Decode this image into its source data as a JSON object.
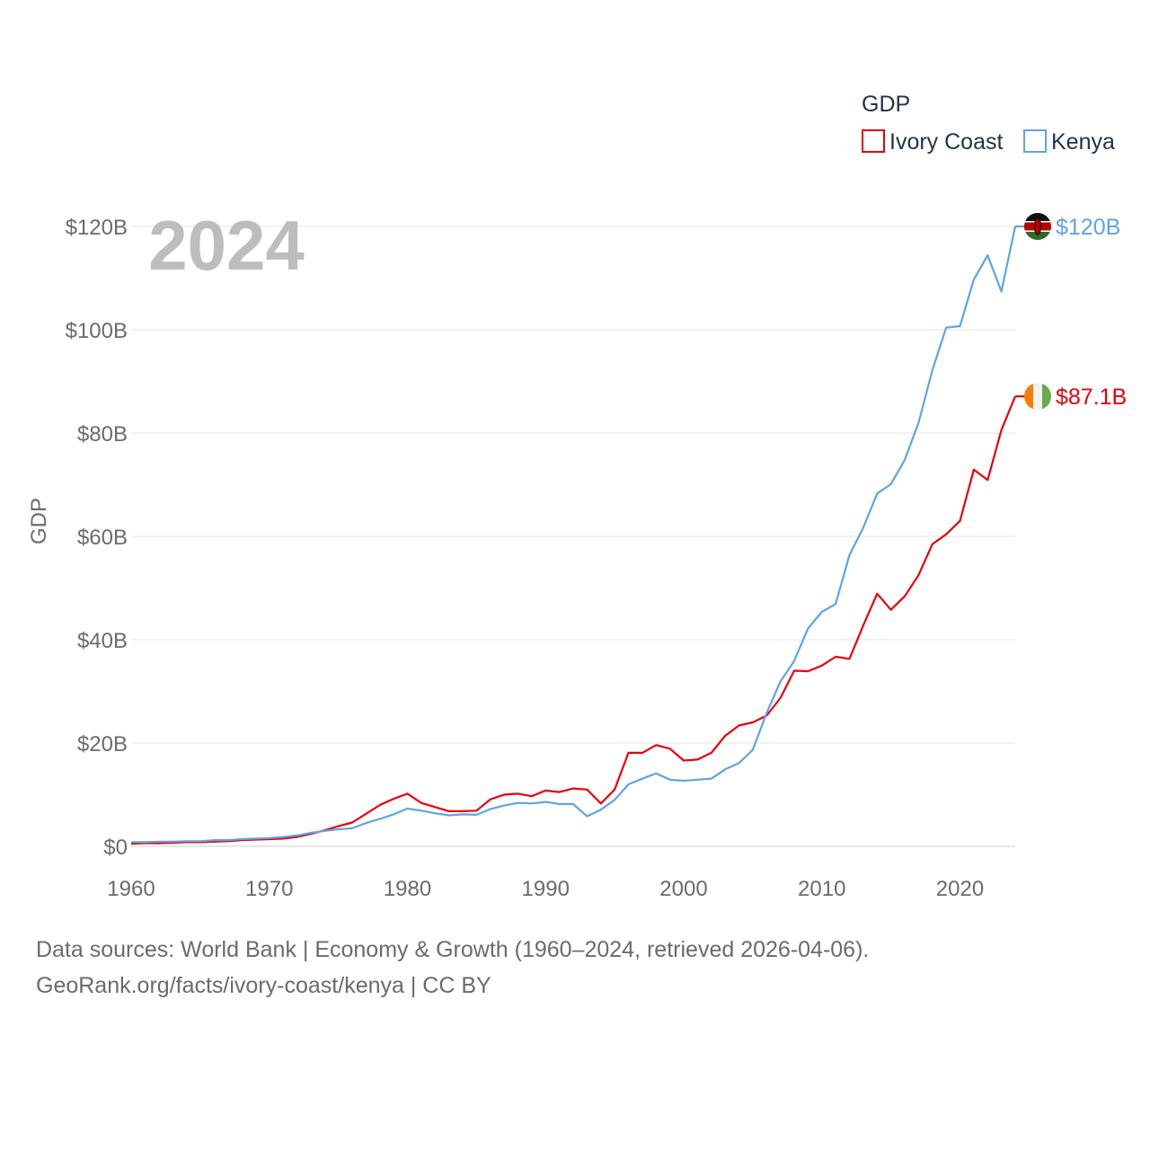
{
  "chart_data": {
    "type": "line",
    "year_label": "2024",
    "ylabel": "GDP",
    "legend_title": "GDP",
    "xlim": [
      1960,
      2024
    ],
    "ylim": [
      0,
      120
    ],
    "x_ticks": [
      1960,
      1970,
      1980,
      1990,
      2000,
      2010,
      2020
    ],
    "y_ticks": [
      {
        "value": 0,
        "label": "$0"
      },
      {
        "value": 20,
        "label": "$20B"
      },
      {
        "value": 40,
        "label": "$40B"
      },
      {
        "value": 60,
        "label": "$60B"
      },
      {
        "value": 80,
        "label": "$80B"
      },
      {
        "value": 100,
        "label": "$100B"
      },
      {
        "value": 120,
        "label": "$120B"
      }
    ],
    "x": [
      1960,
      1961,
      1962,
      1963,
      1964,
      1965,
      1966,
      1967,
      1968,
      1969,
      1970,
      1971,
      1972,
      1973,
      1974,
      1975,
      1976,
      1977,
      1978,
      1979,
      1980,
      1981,
      1982,
      1983,
      1984,
      1985,
      1986,
      1987,
      1988,
      1989,
      1990,
      1991,
      1992,
      1993,
      1994,
      1995,
      1996,
      1997,
      1998,
      1999,
      2000,
      2001,
      2002,
      2003,
      2004,
      2005,
      2006,
      2007,
      2008,
      2009,
      2010,
      2011,
      2012,
      2013,
      2014,
      2015,
      2016,
      2017,
      2018,
      2019,
      2020,
      2021,
      2022,
      2023,
      2024
    ],
    "series": [
      {
        "name": "Ivory Coast",
        "color": "#e8000b",
        "flag": "ivory-coast-flag-icon",
        "end_label": "$87.1B",
        "values": [
          0.5,
          0.6,
          0.6,
          0.7,
          0.8,
          0.8,
          0.9,
          1.0,
          1.2,
          1.3,
          1.4,
          1.5,
          1.8,
          2.4,
          3.1,
          3.9,
          4.6,
          6.3,
          8.0,
          9.2,
          10.2,
          8.4,
          7.6,
          6.8,
          6.8,
          6.9,
          9.1,
          10.0,
          10.2,
          9.7,
          10.8,
          10.5,
          11.2,
          11.0,
          8.3,
          11.0,
          18.1,
          18.1,
          19.6,
          18.9,
          16.6,
          16.8,
          18.1,
          21.4,
          23.4,
          24.0,
          25.3,
          28.7,
          34.0,
          33.9,
          35.0,
          36.7,
          36.3,
          42.8,
          48.9,
          45.8,
          48.4,
          52.5,
          58.5,
          60.4,
          63.0,
          72.9,
          70.9,
          80.6,
          87.1
        ]
      },
      {
        "name": "Kenya",
        "color": "#5da5e4",
        "flag": "kenya-flag-icon",
        "end_label": "$120B",
        "values": [
          0.8,
          0.8,
          0.9,
          0.9,
          1.0,
          1.0,
          1.2,
          1.2,
          1.4,
          1.5,
          1.6,
          1.8,
          2.1,
          2.6,
          3.0,
          3.3,
          3.5,
          4.5,
          5.3,
          6.2,
          7.3,
          6.9,
          6.4,
          6.0,
          6.2,
          6.1,
          7.2,
          7.9,
          8.4,
          8.3,
          8.6,
          8.2,
          8.2,
          5.8,
          7.1,
          9.0,
          12.0,
          13.1,
          14.1,
          12.9,
          12.7,
          12.9,
          13.1,
          14.9,
          16.1,
          18.7,
          25.8,
          31.9,
          35.9,
          42.2,
          45.4,
          46.9,
          56.4,
          61.7,
          68.3,
          70.1,
          74.8,
          82.0,
          92.2,
          100.4,
          100.7,
          109.7,
          114.4,
          107.4,
          120.0
        ]
      }
    ]
  },
  "footer": {
    "line1": "Data sources: World Bank | Economy & Growth (1960–2024, retrieved 2026-04-06).",
    "line2": "GeoRank.org/facts/ivory-coast/kenya | CC BY"
  }
}
